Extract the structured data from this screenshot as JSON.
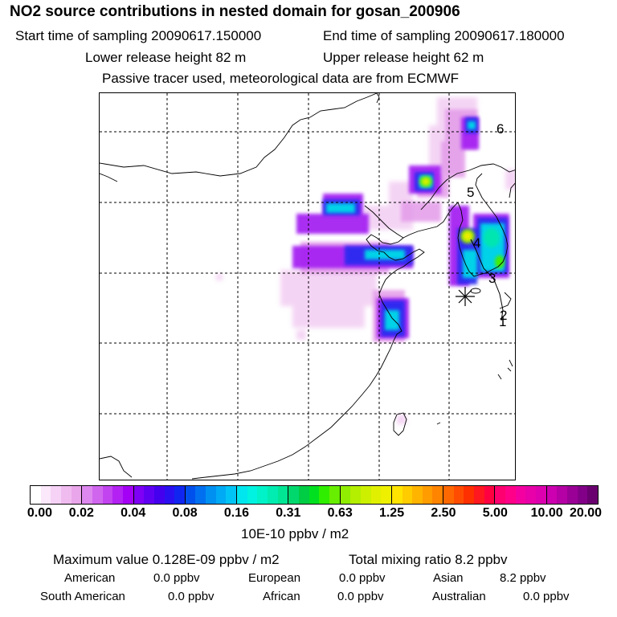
{
  "header": {
    "title": "NO2 source contributions in nested domain for gosan_200906",
    "start_label": "Start time of sampling 20090617.150000",
    "end_label": "End time of sampling 20090617.180000",
    "lower_label": "Lower release height   82 m",
    "upper_label": "Upper release height   62 m",
    "note": "Passive tracer used, meteorological data are from ECMWF"
  },
  "map": {
    "trajectory_labels": [
      "1",
      "2",
      "3",
      "4",
      "5",
      "6"
    ],
    "colors": {
      "land_line": "#000000",
      "grid_line": "#000000"
    }
  },
  "colorbar": {
    "tick_labels": [
      "0.00",
      "0.02",
      "0.04",
      "0.08",
      "0.16",
      "0.31",
      "0.63",
      "1.25",
      "2.50",
      "5.00",
      "10.00",
      "20.00"
    ],
    "unit": "10E-10 ppbv / m2",
    "colors": [
      [
        "#ffffff",
        "#fbe8fb",
        "#f6d2f6",
        "#f0bcf0",
        "#eaa6ea"
      ],
      [
        "#dd88ee",
        "#d066ee",
        "#c244f0",
        "#b322f2",
        "#a400f5"
      ],
      [
        "#7e00f5",
        "#6000f2",
        "#4400ee",
        "#2a10f0",
        "#1026f0"
      ],
      [
        "#0050ee",
        "#0070f0",
        "#0090f2",
        "#00aaf4",
        "#00c4f6"
      ],
      [
        "#00e6ee",
        "#00f2e0",
        "#00f2c8",
        "#00ecb0",
        "#00e694"
      ],
      [
        "#00d86e",
        "#00cc44",
        "#00e020",
        "#30ee00",
        "#68ee00"
      ],
      [
        "#90ec00",
        "#b4ee00",
        "#ccf000",
        "#e0f000",
        "#eef000"
      ],
      [
        "#ffe400",
        "#ffcc00",
        "#ffb400",
        "#ff9c00",
        "#ff8400"
      ],
      [
        "#ff6800",
        "#ff4c00",
        "#ff3000",
        "#ff1820",
        "#ff0040"
      ],
      [
        "#ff0070",
        "#ff0088",
        "#f400a0",
        "#e800a8",
        "#dc00ae"
      ],
      [
        "#cc00b0",
        "#b400a4",
        "#9a0096",
        "#820088",
        "#6a0070"
      ]
    ]
  },
  "summary": {
    "max_label": "Maximum value  0.128E-09 ppbv / m2",
    "total_label": "Total mixing ratio        8.2 ppbv",
    "regions": [
      {
        "name": "American",
        "value": "0.0 ppbv"
      },
      {
        "name": "European",
        "value": "0.0 ppbv"
      },
      {
        "name": "Asian",
        "value": "8.2 ppbv"
      },
      {
        "name": "South American",
        "value": "0.0 ppbv"
      },
      {
        "name": "African",
        "value": "0.0 ppbv"
      },
      {
        "name": "Australian",
        "value": "0.0 ppbv"
      }
    ]
  }
}
